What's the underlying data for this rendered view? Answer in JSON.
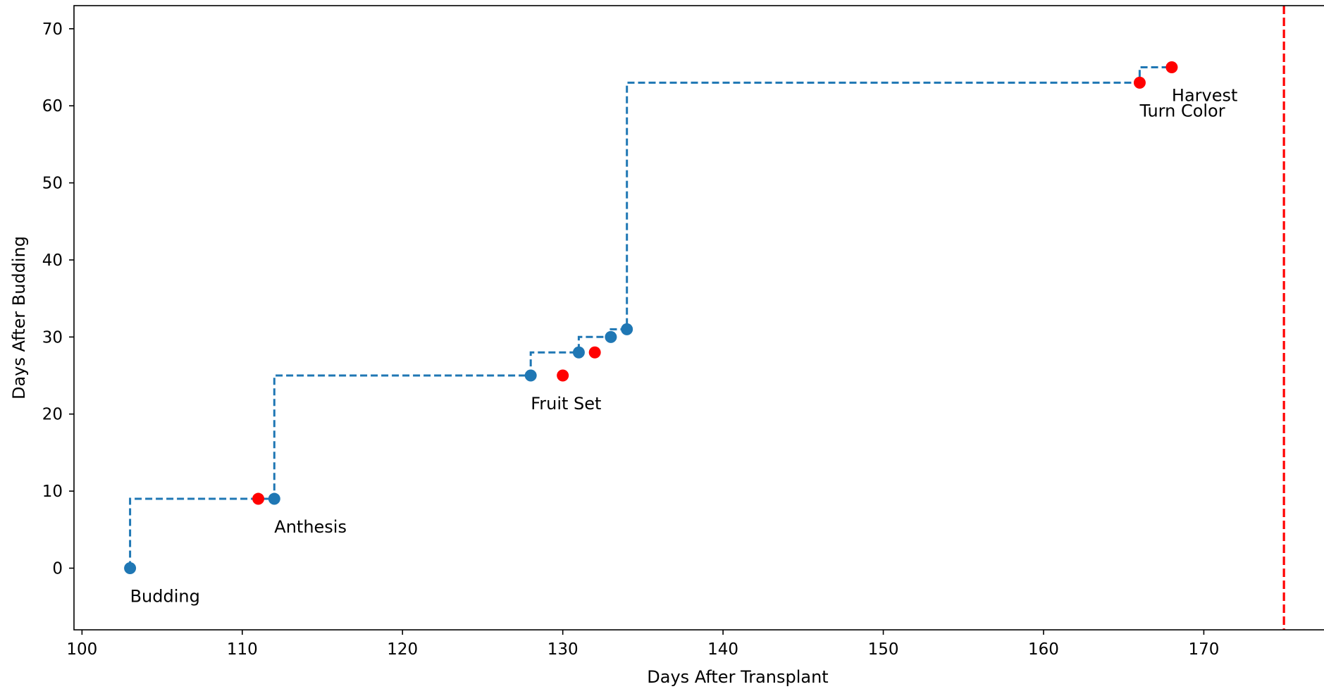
{
  "chart_data": {
    "type": "scatter",
    "xlabel": "Days After Transplant",
    "ylabel": "Days After Budding",
    "xlim": [
      99.5,
      177.5
    ],
    "ylim": [
      -8,
      73
    ],
    "xticks": [
      100,
      110,
      120,
      130,
      140,
      150,
      160,
      170
    ],
    "yticks": [
      0,
      10,
      20,
      30,
      40,
      50,
      60,
      70
    ],
    "grid": false,
    "step_line": {
      "color": "#1f77b4",
      "style": "dashed",
      "points": [
        [
          103,
          0
        ],
        [
          103,
          9
        ],
        [
          112,
          9
        ],
        [
          112,
          25
        ],
        [
          128,
          25
        ],
        [
          128,
          28
        ],
        [
          131,
          28
        ],
        [
          131,
          30
        ],
        [
          133,
          30
        ],
        [
          133,
          31
        ],
        [
          134,
          31
        ],
        [
          134,
          63
        ],
        [
          166,
          63
        ],
        [
          166,
          65
        ],
        [
          168,
          65
        ]
      ]
    },
    "series": [
      {
        "color": "#1f77b4",
        "points": [
          [
            103,
            0
          ],
          [
            112,
            9
          ],
          [
            128,
            25
          ],
          [
            131,
            28
          ],
          [
            133,
            30
          ],
          [
            134,
            31
          ]
        ]
      },
      {
        "color": "#ff0000",
        "points": [
          [
            111,
            9
          ],
          [
            130,
            25
          ],
          [
            132,
            28
          ],
          [
            166,
            63
          ],
          [
            168,
            65
          ]
        ]
      }
    ],
    "annotations": [
      {
        "text": "Budding",
        "x": 103,
        "y": 0
      },
      {
        "text": "Anthesis",
        "x": 112,
        "y": 9
      },
      {
        "text": "Fruit Set",
        "x": 128,
        "y": 25
      },
      {
        "text": "Turn Color",
        "x": 166,
        "y": 63
      },
      {
        "text": "Harvest",
        "x": 168,
        "y": 65
      }
    ],
    "vline": {
      "x": 175,
      "color": "#ff0000",
      "style": "dashed"
    }
  }
}
